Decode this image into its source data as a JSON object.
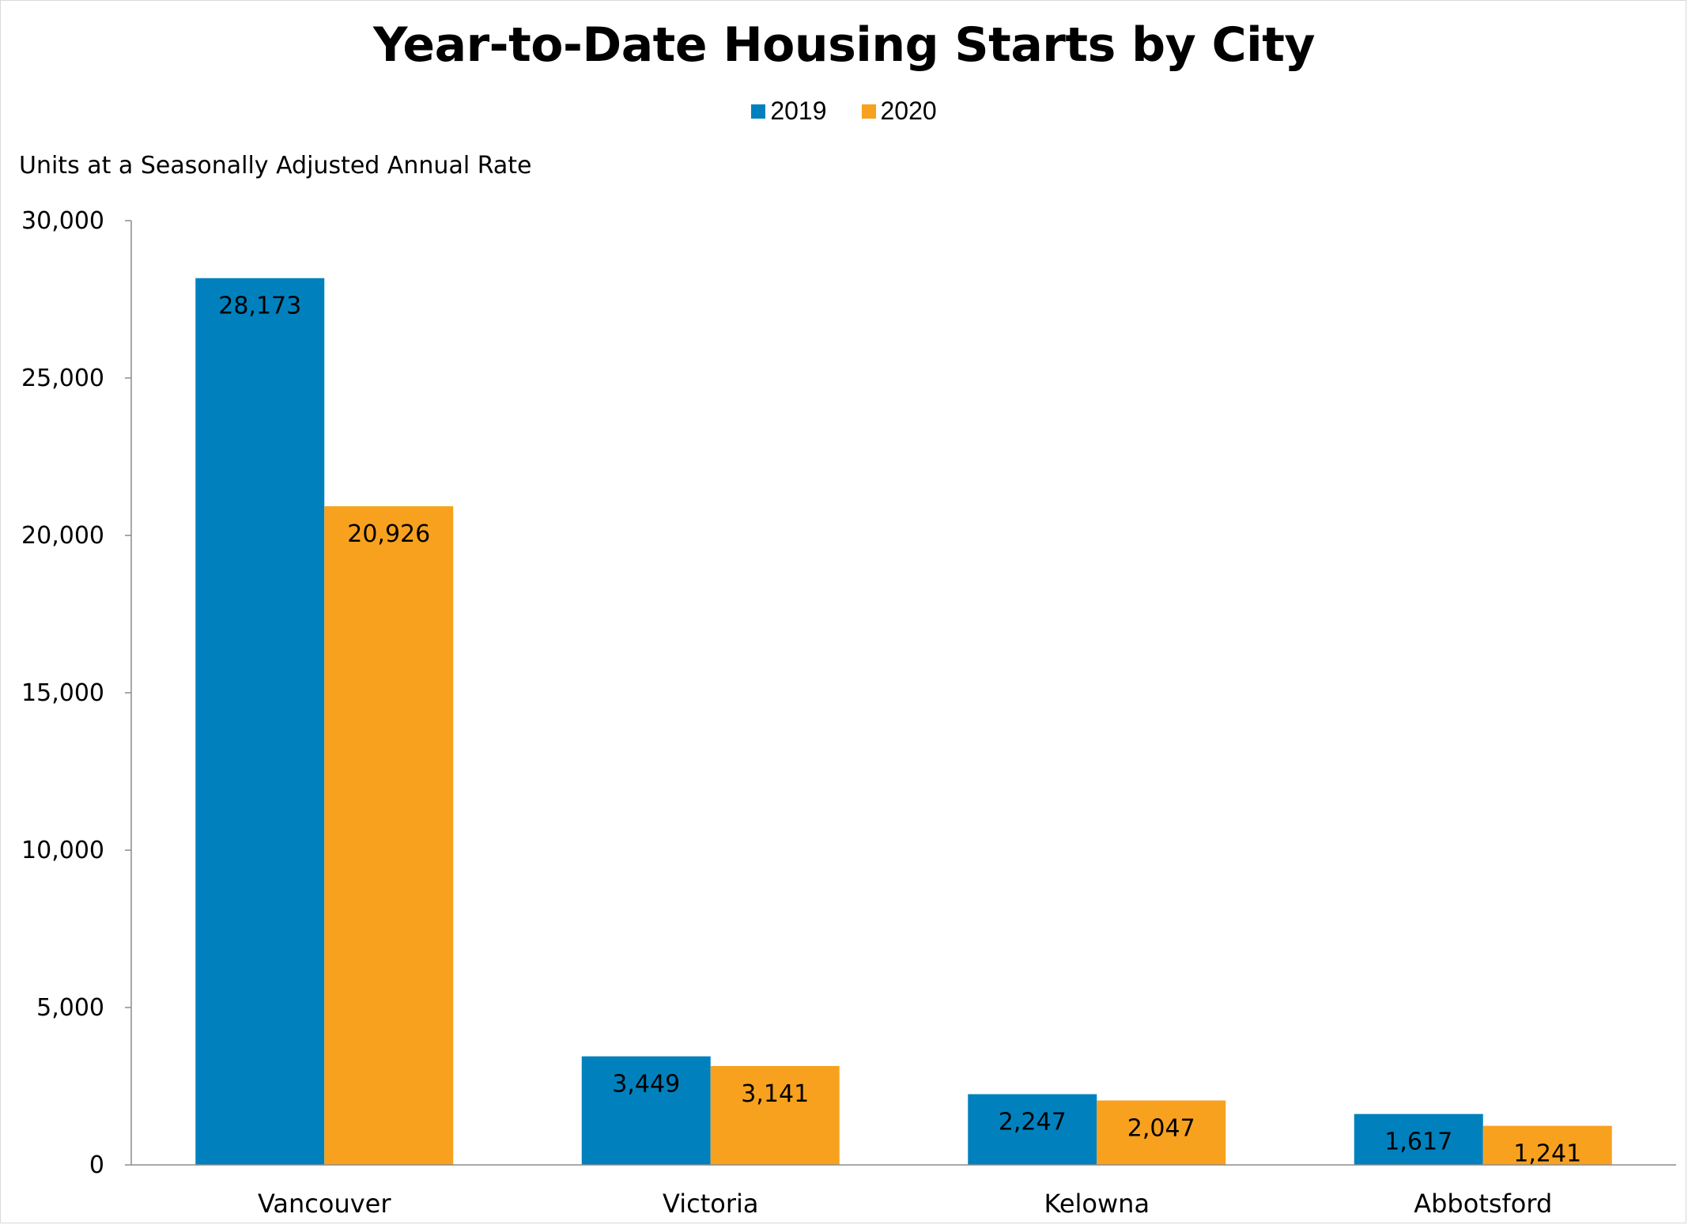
{
  "chart_data": {
    "type": "bar",
    "title": "Year-to-Date Housing Starts by City",
    "ylabel": "Units at a Seasonally Adjusted Annual Rate",
    "xlabel": "",
    "categories": [
      "Vancouver",
      "Victoria",
      "Kelowna",
      "Abbotsford"
    ],
    "series": [
      {
        "name": "2019",
        "color": "#0081BD",
        "values": [
          28173,
          3449,
          2247,
          1617
        ],
        "labels": [
          "28,173",
          "3,449",
          "2,247",
          "1,617"
        ]
      },
      {
        "name": "2020",
        "color": "#F7A11E",
        "values": [
          20926,
          3141,
          2047,
          1241
        ],
        "labels": [
          "20,926",
          "3,141",
          "2,047",
          "1,241"
        ]
      }
    ],
    "ylim": [
      0,
      30000
    ],
    "yticks": [
      0,
      5000,
      10000,
      15000,
      20000,
      25000,
      30000
    ],
    "ytick_labels": [
      "0",
      "5,000",
      "10,000",
      "15,000",
      "20,000",
      "25,000",
      "30,000"
    ],
    "legend_position": "top-center",
    "grid": false
  }
}
